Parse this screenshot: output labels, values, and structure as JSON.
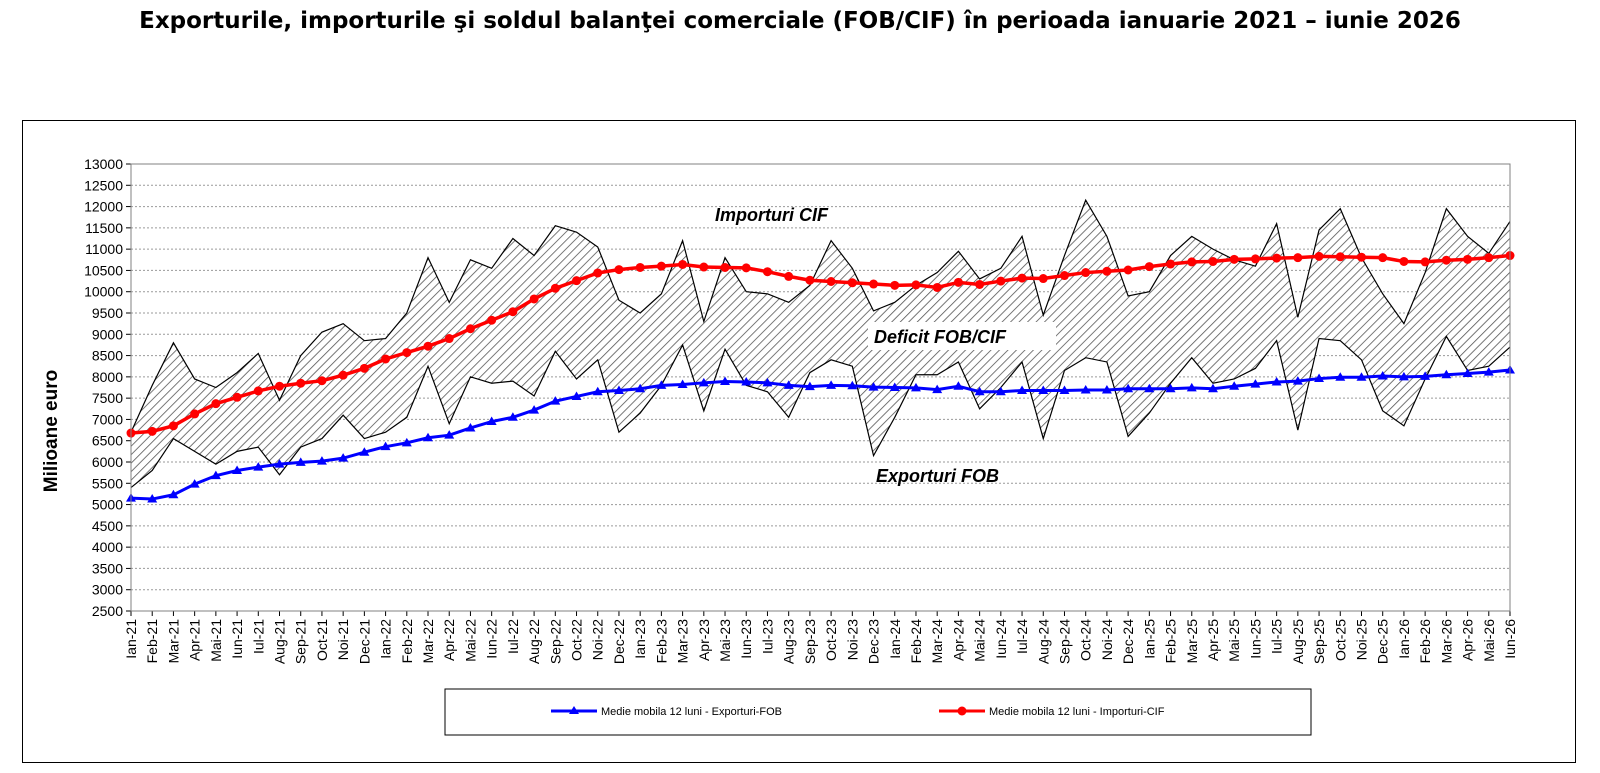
{
  "title": "Exporturile, importurile şi soldul balanţei comerciale (FOB/CIF) în perioada ianuarie 2021 – iunie 2026",
  "colors": {
    "exports_ma": "#0000ff",
    "imports_ma": "#ff0000",
    "raw_lines": "#000000",
    "hatch": "#555555",
    "grid": "#9a9a9a"
  },
  "chart_data": {
    "type": "line",
    "ylabel": "Milioane  euro",
    "xlabel": "",
    "ylim": [
      2500,
      13000
    ],
    "yticks": [
      2500,
      3000,
      3500,
      4000,
      4500,
      5000,
      5500,
      6000,
      6500,
      7000,
      7500,
      8000,
      8500,
      9000,
      9500,
      10000,
      10500,
      11000,
      11500,
      12000,
      12500,
      13000
    ],
    "grid": true,
    "legend_position": "bottom",
    "categories": [
      "Ian-21",
      "Feb-21",
      "Mar-21",
      "Apr-21",
      "Mai-21",
      "Iun-21",
      "Iul-21",
      "Aug-21",
      "Sep-21",
      "Oct-21",
      "Noi-21",
      "Dec-21",
      "Ian-22",
      "Feb-22",
      "Mar-22",
      "Apr-22",
      "Mai-22",
      "Iun-22",
      "Iul-22",
      "Aug-22",
      "Sep-22",
      "Oct-22",
      "Noi-22",
      "Dec-22",
      "Ian-23",
      "Feb-23",
      "Mar-23",
      "Apr-23",
      "Mai-23",
      "Iun-23",
      "Iul-23",
      "Aug-23",
      "Sep-23",
      "Oct-23",
      "Noi-23",
      "Dec-23",
      "Ian-24",
      "Feb-24",
      "Mar-24",
      "Apr-24",
      "Mai-24",
      "Iun-24",
      "Iul-24",
      "Aug-24",
      "Sep-24",
      "Oct-24",
      "Noi-24",
      "Dec-24",
      "Ian-25",
      "Feb-25",
      "Mar-25",
      "Apr-25",
      "Mai-25",
      "Iun-25",
      "Iul-25",
      "Aug-25",
      "Sep-25",
      "Oct-25",
      "Noi-25",
      "Dec-25",
      "Ian-26",
      "Feb-26",
      "Mar-26",
      "Apr-26",
      "Mai-26",
      "Iun-26"
    ],
    "series": [
      {
        "name": "Importuri CIF",
        "values": [
          6700,
          7800,
          8800,
          7950,
          7750,
          8100,
          8550,
          7450,
          8500,
          9050,
          9250,
          8850,
          8900,
          9500,
          10800,
          9750,
          10750,
          10550,
          11250,
          10850,
          11550,
          11400,
          11050,
          9800,
          9500,
          9950,
          11200,
          9300,
          10800,
          10000,
          9950,
          9750,
          10150,
          11200,
          10550,
          9550,
          9750,
          10150,
          10450,
          10950,
          10300,
          10550,
          11300,
          9450,
          10850,
          12150,
          11300,
          9900,
          10000,
          10850,
          11300,
          11000,
          10750,
          10600,
          11600,
          9400,
          11450,
          11950,
          10800,
          9950,
          9250,
          10450,
          11950,
          11300,
          10900,
          11650
        ]
      },
      {
        "name": "Exporturi FOB",
        "values": [
          5400,
          5800,
          6550,
          6250,
          5950,
          6250,
          6350,
          5700,
          6350,
          6550,
          7100,
          6550,
          6700,
          7050,
          8250,
          6900,
          8000,
          7850,
          7900,
          7550,
          8600,
          7950,
          8400,
          6700,
          7150,
          7800,
          8750,
          7200,
          8650,
          7800,
          7650,
          7050,
          8100,
          8400,
          8250,
          6150,
          7050,
          8050,
          8050,
          8350,
          7250,
          7750,
          8350,
          6550,
          8150,
          8450,
          8350,
          6600,
          7150,
          7850,
          8450,
          7850,
          7950,
          8200,
          8850,
          6750,
          8900,
          8850,
          8400,
          7200,
          6850,
          7950,
          8950,
          8150,
          8250,
          8700
        ]
      },
      {
        "name": "Medie mobila 12 luni - Exporturi-FOB",
        "values": [
          5150,
          5130,
          5230,
          5480,
          5680,
          5800,
          5880,
          5950,
          5990,
          6020,
          6090,
          6230,
          6360,
          6450,
          6570,
          6630,
          6800,
          6950,
          7050,
          7220,
          7430,
          7540,
          7650,
          7680,
          7720,
          7800,
          7820,
          7860,
          7890,
          7880,
          7860,
          7800,
          7770,
          7800,
          7790,
          7760,
          7750,
          7740,
          7700,
          7780,
          7650,
          7650,
          7680,
          7680,
          7680,
          7690,
          7690,
          7720,
          7720,
          7720,
          7740,
          7720,
          7780,
          7830,
          7880,
          7900,
          7960,
          7990,
          7990,
          8020,
          8000,
          8010,
          8050,
          8080,
          8110,
          8160
        ]
      },
      {
        "name": "Medie mobila 12 luni - Importuri-CIF",
        "values": [
          6680,
          6720,
          6850,
          7130,
          7370,
          7520,
          7670,
          7780,
          7850,
          7910,
          8040,
          8200,
          8420,
          8570,
          8720,
          8900,
          9130,
          9330,
          9530,
          9830,
          10080,
          10260,
          10440,
          10520,
          10570,
          10600,
          10640,
          10580,
          10570,
          10560,
          10470,
          10360,
          10270,
          10240,
          10210,
          10180,
          10150,
          10160,
          10100,
          10220,
          10170,
          10250,
          10320,
          10310,
          10380,
          10450,
          10480,
          10510,
          10590,
          10650,
          10700,
          10710,
          10760,
          10770,
          10790,
          10800,
          10830,
          10820,
          10810,
          10800,
          10710,
          10700,
          10740,
          10760,
          10800,
          10850
        ]
      }
    ],
    "annotations": {
      "imports": "Importuri CIF",
      "deficit": "Deficit FOB/CIF",
      "exports": "Exporturi FOB"
    }
  }
}
